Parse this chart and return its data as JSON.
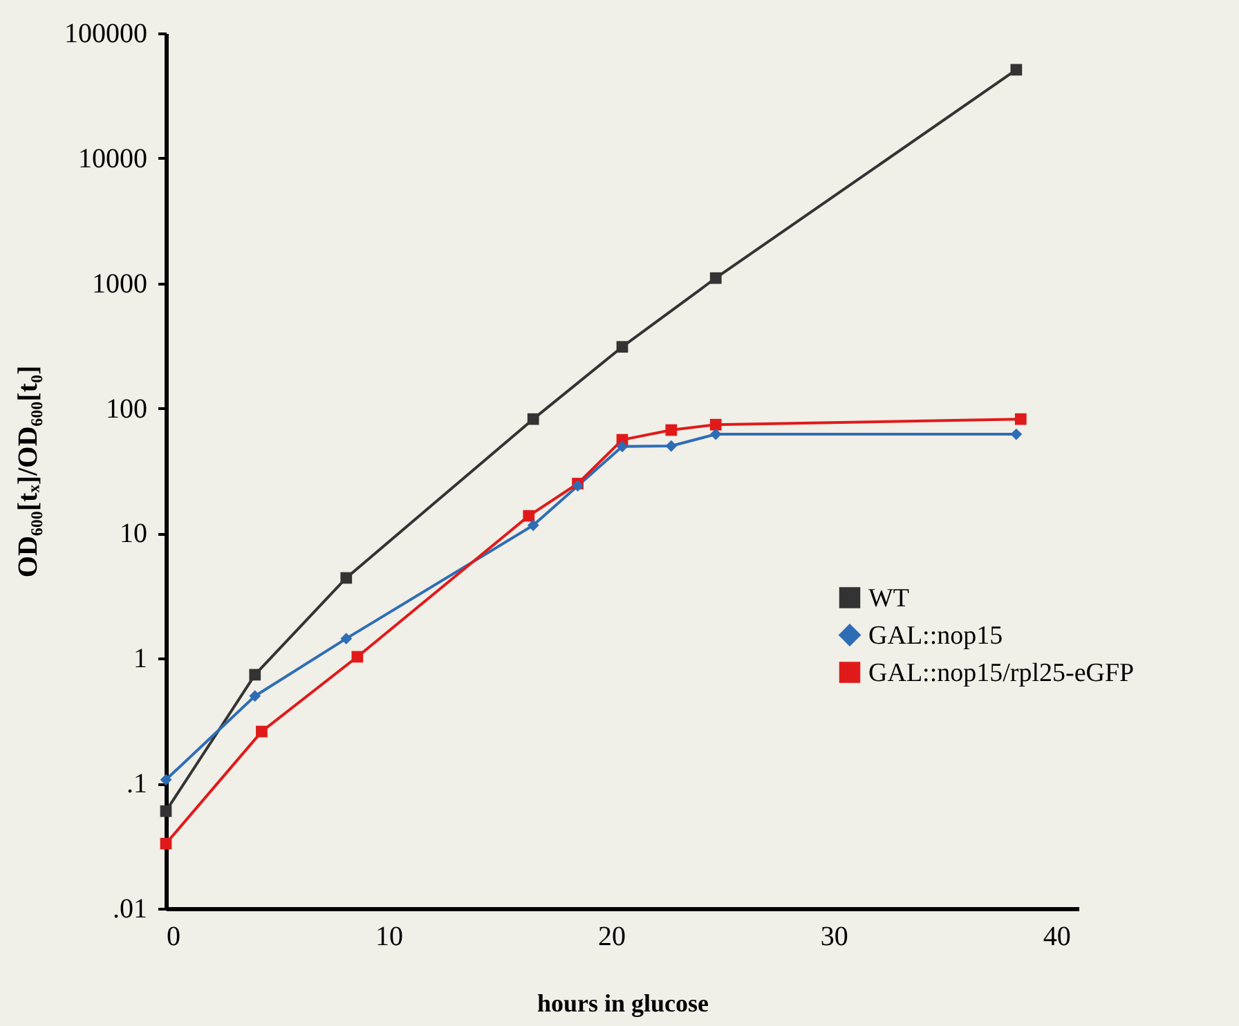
{
  "chart_data": {
    "type": "line",
    "xlabel": "hours in glucose",
    "ylabel": "OD₆₀₀[tₓ]/OD₆₀₀[t₀]",
    "log": "y",
    "xlim": [
      0,
      41
    ],
    "xticks": [
      0,
      10,
      20,
      30,
      40
    ],
    "ylim": [
      0.01,
      100000
    ],
    "yticks": [
      {
        "value": 0.01,
        "label": ".01"
      },
      {
        "value": 0.1,
        "label": ".1"
      },
      1,
      10,
      100,
      1000,
      10000,
      100000
    ],
    "grid": false,
    "legend": "right",
    "series": [
      {
        "name": "WT",
        "color": "#333333",
        "marker": "square",
        "x": [
          0,
          4,
          8.1,
          16.5,
          20.5,
          24.7,
          38.2
        ],
        "values": [
          0.06,
          0.74,
          4.4,
          82,
          310,
          1100,
          51000
        ]
      },
      {
        "name": "GAL::nop15",
        "color": "#2e6db5",
        "marker": "diamond",
        "x": [
          0,
          4,
          8.1,
          16.5,
          18.5,
          20.5,
          22.7,
          24.7,
          38.2
        ],
        "values": [
          0.107,
          0.5,
          1.44,
          11.6,
          24,
          49.5,
          50,
          62,
          62
        ]
      },
      {
        "name": "GAL::nop15/rpl25-eGFP",
        "color": "#e01a1a",
        "marker": "square",
        "x": [
          0,
          4.3,
          8.6,
          16.3,
          18.5,
          20.5,
          22.7,
          24.7,
          38.4
        ],
        "values": [
          0.033,
          0.26,
          1.03,
          13.8,
          25,
          56,
          67,
          74,
          82
        ]
      }
    ]
  }
}
